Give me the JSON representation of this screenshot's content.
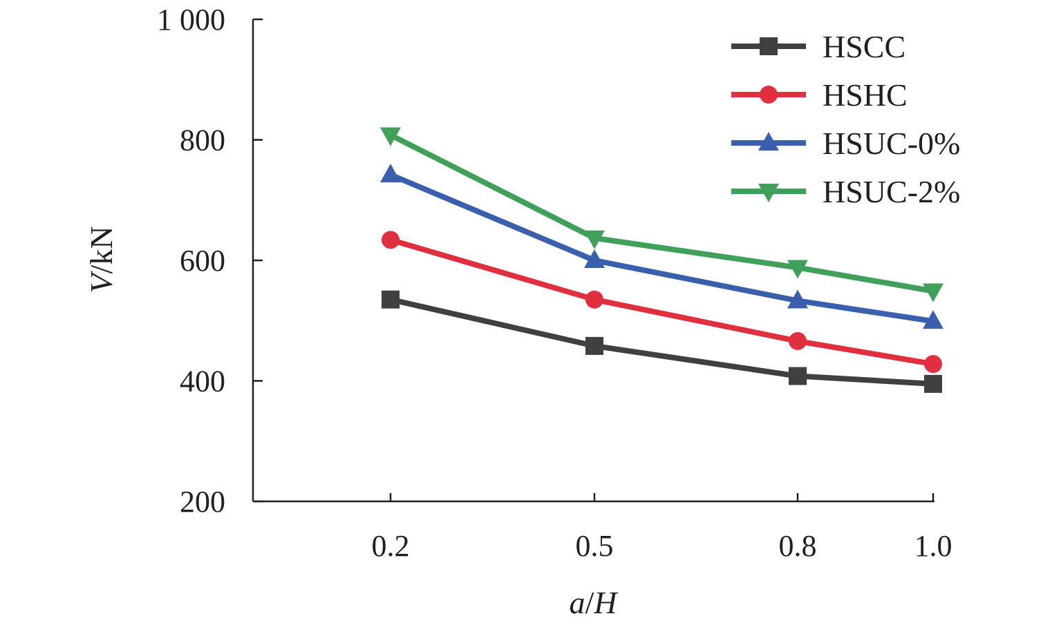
{
  "chart_data": {
    "type": "line",
    "title": "",
    "xlabel": {
      "var": "a",
      "sep": "/",
      "var2": "H"
    },
    "ylabel": {
      "var": "V",
      "unit": "/kN"
    },
    "x": [
      0.2,
      0.5,
      0.8,
      1.0
    ],
    "x_tick_labels": [
      "0.2",
      "0.5",
      "0.8",
      "1.0"
    ],
    "y_ticks": [
      200,
      400,
      600,
      800,
      1000
    ],
    "y_tick_labels": [
      "200",
      "400",
      "600",
      "800",
      "1 000"
    ],
    "ylim": [
      200,
      1000
    ],
    "grid": false,
    "legend_position": "top-right",
    "series": [
      {
        "name": "HSCC",
        "values": [
          535,
          458,
          408,
          395
        ],
        "color": "#404041",
        "marker": "square"
      },
      {
        "name": "HSHC",
        "values": [
          634,
          535,
          466,
          428
        ],
        "color": "#e03040",
        "marker": "circle"
      },
      {
        "name": "HSUC-0%",
        "values": [
          742,
          600,
          533,
          499
        ],
        "color": "#3a5fad",
        "marker": "triangle-up"
      },
      {
        "name": "HSUC-2%",
        "values": [
          808,
          637,
          588,
          549
        ],
        "color": "#3fa05a",
        "marker": "triangle-down"
      }
    ]
  }
}
